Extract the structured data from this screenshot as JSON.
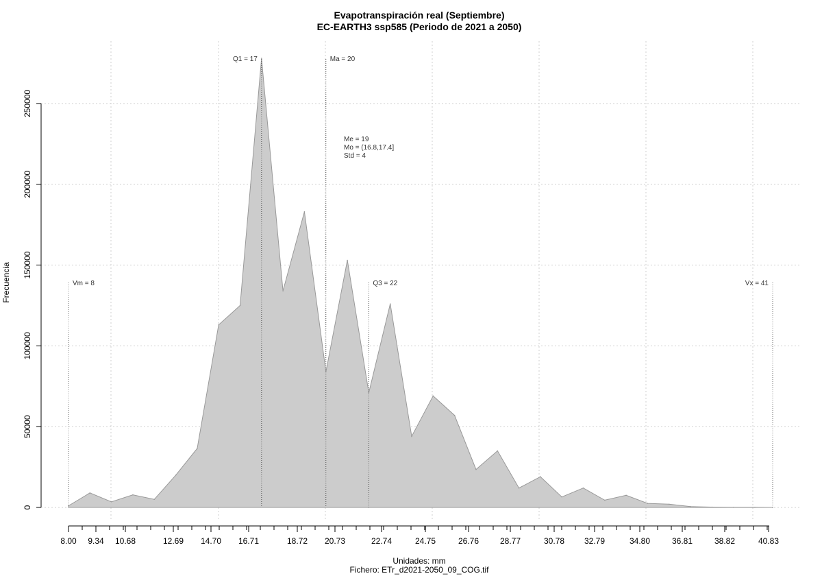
{
  "chart_data": {
    "type": "area",
    "title": "Evapotranspiración real (Septiembre)",
    "subtitle": "EC-EARTH3 ssp585 (Periodo de 2021 a 2050)",
    "xlabel": "Unidades: mm",
    "caption": "Fichero: ETr_d2021-2050_09_COG.tif",
    "ylabel": "Frecuencia",
    "xlim": [
      8.0,
      40.83
    ],
    "ylim": [
      0,
      280000
    ],
    "x_tick_labels": [
      "8.00",
      "9.34",
      "10.68",
      "12.69",
      "14.70",
      "16.71",
      "18.72",
      "20.73",
      "22.74",
      "24.75",
      "26.76",
      "28.77",
      "30.78",
      "32.79",
      "34.80",
      "36.81",
      "38.82",
      "40.83"
    ],
    "y_tick_values": [
      0,
      50000,
      100000,
      150000,
      200000,
      250000
    ],
    "y_tick_labels": [
      "0",
      "50000",
      "100000",
      "150000",
      "200000",
      "250000"
    ],
    "grid": true,
    "fill_color": "#cccccc",
    "line_color": "#999999",
    "x": [
      8.0,
      9.0,
      10.0,
      11.0,
      12.0,
      13.0,
      14.0,
      15.0,
      16.0,
      17.0,
      18.0,
      19.0,
      20.0,
      21.0,
      22.0,
      23.0,
      24.0,
      25.0,
      26.0,
      27.0,
      28.0,
      29.0,
      30.0,
      31.0,
      32.0,
      33.0,
      34.0,
      35.0,
      36.0,
      37.0,
      38.0,
      39.0,
      40.0,
      40.83
    ],
    "y": [
      1000,
      9000,
      3500,
      7800,
      5000,
      20000,
      36500,
      113000,
      125000,
      278000,
      134000,
      183000,
      84000,
      153000,
      71000,
      126000,
      44000,
      69000,
      57000,
      23500,
      35000,
      12000,
      19000,
      6500,
      12000,
      4500,
      7500,
      2500,
      2000,
      500,
      200,
      100,
      100,
      0
    ],
    "markers": [
      {
        "name": "Vm",
        "x": 8.0,
        "label": "Vm = 8"
      },
      {
        "name": "Q1",
        "x": 17.0,
        "label": "Q1 = 17"
      },
      {
        "name": "Ma",
        "x": 20.0,
        "label": "Ma = 20"
      },
      {
        "name": "Q3",
        "x": 22.0,
        "label": "Q3 = 22"
      },
      {
        "name": "Vx",
        "x": 40.83,
        "label": "Vx = 41"
      }
    ],
    "stats": [
      "Me = 19",
      "Mo = (16.8,17.4]",
      "Std = 4"
    ]
  }
}
